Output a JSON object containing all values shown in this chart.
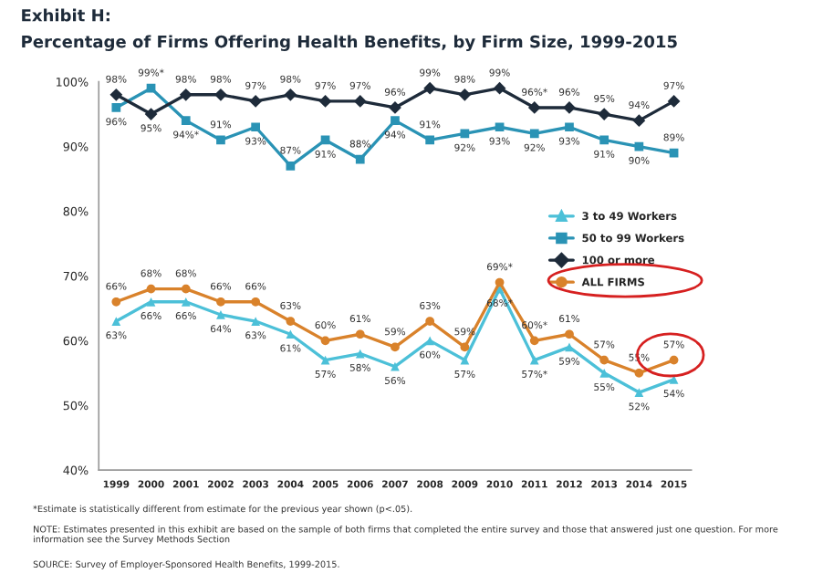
{
  "chart_data": {
    "type": "line",
    "title": "Exhibit H:",
    "subtitle": "Percentage of Firms Offering Health Benefits, by Firm Size, 1999-2015",
    "categories": [
      "1999",
      "2000",
      "2001",
      "2002",
      "2003",
      "2004",
      "2005",
      "2006",
      "2007",
      "2008",
      "2009",
      "2010",
      "2011",
      "2012",
      "2013",
      "2014",
      "2015"
    ],
    "series": [
      {
        "name": "3 to 49 Workers",
        "color": "#4cc0d8",
        "marker": "triangle",
        "values": [
          63,
          66,
          66,
          64,
          63,
          61,
          57,
          58,
          56,
          60,
          57,
          68,
          57,
          59,
          55,
          52,
          54
        ],
        "value_labels": [
          "63%",
          "66%",
          "66%",
          "64%",
          "63%",
          "61%",
          "57%",
          "58%",
          "56%",
          "60%",
          "57%",
          "68%*",
          "57%*",
          "59%",
          "55%",
          "52%",
          "54%"
        ]
      },
      {
        "name": "50 to 99 Workers",
        "color": "#2a93b5",
        "marker": "square",
        "values": [
          96,
          99,
          94,
          91,
          93,
          87,
          91,
          88,
          94,
          91,
          92,
          93,
          92,
          93,
          91,
          90,
          89
        ],
        "value_labels": [
          "96%",
          "99%*",
          "94%*",
          "91%",
          "93%",
          "87%",
          "91%",
          "88%",
          "94%",
          "91%",
          "92%",
          "93%",
          "92%",
          "93%",
          "91%",
          "90%",
          "89%"
        ]
      },
      {
        "name": "100 or more",
        "color": "#1e2b3a",
        "marker": "diamond",
        "values": [
          98,
          95,
          98,
          98,
          97,
          98,
          97,
          97,
          96,
          99,
          98,
          99,
          96,
          96,
          95,
          94,
          97
        ],
        "value_labels": [
          "98%",
          "95%",
          "98%",
          "98%",
          "97%",
          "98%",
          "97%",
          "97%",
          "96%",
          "99%",
          "98%",
          "99%",
          "96%*",
          "96%",
          "95%",
          "94%",
          "97%"
        ]
      },
      {
        "name": "ALL FIRMS",
        "color": "#d9822b",
        "marker": "circle",
        "values": [
          66,
          68,
          68,
          66,
          66,
          63,
          60,
          61,
          59,
          63,
          59,
          69,
          60,
          61,
          57,
          55,
          57
        ],
        "value_labels": [
          "66%",
          "68%",
          "68%",
          "66%",
          "66%",
          "63%",
          "60%",
          "61%",
          "59%",
          "63%",
          "59%",
          "69%*",
          "60%*",
          "61%",
          "57%",
          "55%",
          "57%"
        ]
      }
    ],
    "ylim": [
      40,
      100
    ],
    "yticks": [
      {
        "value": 40,
        "label": "40%"
      },
      {
        "value": 50,
        "label": "50%"
      },
      {
        "value": 60,
        "label": "60%"
      },
      {
        "value": 70,
        "label": "70%"
      },
      {
        "value": 80,
        "label": "80%"
      },
      {
        "value": 90,
        "label": "90%"
      },
      {
        "value": 100,
        "label": "100%"
      }
    ],
    "grid": false,
    "legend": "right",
    "line_style": "solid",
    "annotations": [
      "*Estimate is statistically different from estimate for the previous year shown (p<.05).",
      "NOTE: Estimates presented in this exhibit are based on the sample of both firms that completed the entire survey and those that answered just one question. For more information see the Survey Methods Section",
      "SOURCE: Survey of Employer-Sponsored Health Benefits, 1999-2015."
    ]
  }
}
